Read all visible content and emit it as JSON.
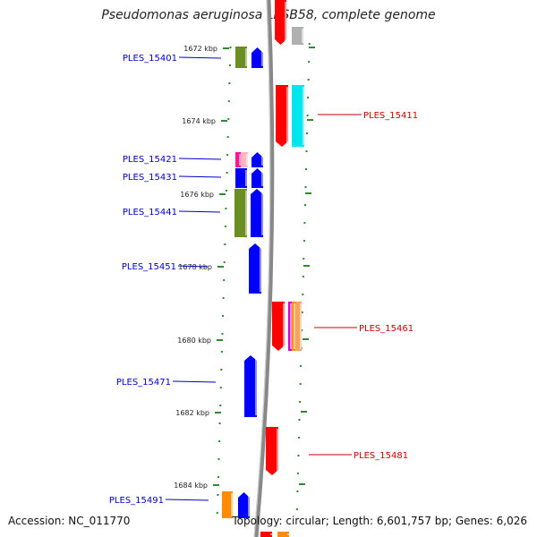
{
  "title": "Pseudomonas aeruginosa LESB58, complete genome",
  "footer": {
    "accession": "Accession: NC_011770",
    "stats": "Topology: circular; Length: 6,601,757 bp; Genes: 6,026"
  },
  "colors": {
    "backbone": "#888888",
    "tick": "#2e8b2e",
    "left_label": "#0000cc",
    "right_label": "#cc0000",
    "olive": "#6b8e23",
    "blue": "#0000ff",
    "red": "#ff0000",
    "cyan": "#00e5ee",
    "gray": "#b0b0b0",
    "orange": "#ff8c00",
    "magenta": "#ff1493"
  },
  "scale_labels": [
    "1672 kbp",
    "1674 kbp",
    "1676 kbp",
    "1678 kbp",
    "1680 kbp",
    "1682 kbp",
    "1684 kbp"
  ],
  "left_labels": [
    "PLES_15401",
    "PLES_15421",
    "PLES_15431",
    "PLES_15441",
    "PLES_15451",
    "PLES_15471",
    "PLES_15491"
  ],
  "right_labels": [
    "PLES_15411",
    "PLES_15461",
    "PLES_15481"
  ]
}
